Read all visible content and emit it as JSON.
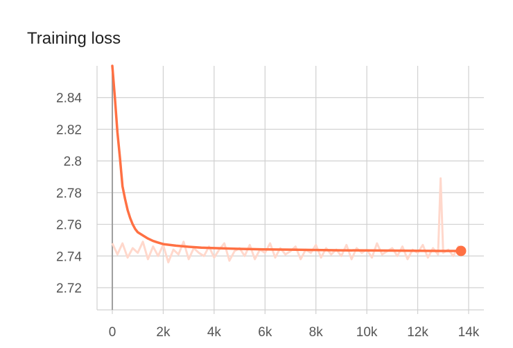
{
  "chart_data": {
    "type": "line",
    "title": "Training loss",
    "xlabel": "",
    "ylabel": "",
    "xlim": [
      -600,
      14600
    ],
    "ylim": [
      2.706,
      2.86
    ],
    "x_ticks": [
      0,
      2000,
      4000,
      6000,
      8000,
      10000,
      12000,
      14000
    ],
    "x_tick_labels": [
      "0",
      "2k",
      "4k",
      "6k",
      "8k",
      "10k",
      "12k",
      "14k"
    ],
    "y_ticks": [
      2.72,
      2.74,
      2.76,
      2.78,
      2.8,
      2.82,
      2.84
    ],
    "y_tick_labels": [
      "2.72",
      "2.74",
      "2.76",
      "2.78",
      "2.8",
      "2.82",
      "2.84"
    ],
    "grid": true,
    "legend": "none",
    "colors": {
      "smoothed": "#ff7043",
      "raw": "#ffd8cc",
      "grid": "#d0d0d0",
      "axis": "#9e9e9e"
    },
    "series": [
      {
        "role": "smoothed",
        "x": [
          0,
          100,
          200,
          300,
          400,
          500,
          600,
          700,
          800,
          900,
          1000,
          1200,
          1400,
          1600,
          1800,
          2000,
          2500,
          3000,
          3500,
          4000,
          5000,
          6000,
          7000,
          8000,
          9000,
          10000,
          11000,
          12000,
          13000,
          13700
        ],
        "y": [
          2.86,
          2.84,
          2.818,
          2.802,
          2.784,
          2.776,
          2.769,
          2.764,
          2.76,
          2.757,
          2.755,
          2.753,
          2.751,
          2.7495,
          2.7485,
          2.7475,
          2.7465,
          2.7458,
          2.7453,
          2.745,
          2.7445,
          2.7442,
          2.744,
          2.7438,
          2.7436,
          2.7435,
          2.7434,
          2.7433,
          2.7432,
          2.7432
        ]
      },
      {
        "role": "raw",
        "x": [
          0,
          200,
          400,
          600,
          800,
          1000,
          1200,
          1400,
          1600,
          1800,
          2000,
          2200,
          2400,
          2600,
          2800,
          3000,
          3200,
          3400,
          3600,
          3800,
          4000,
          4200,
          4400,
          4600,
          4800,
          5000,
          5200,
          5400,
          5600,
          5800,
          6000,
          6200,
          6400,
          6600,
          6800,
          7000,
          7200,
          7400,
          7600,
          7800,
          8000,
          8200,
          8400,
          8600,
          8800,
          9000,
          9200,
          9400,
          9600,
          9800,
          10000,
          10200,
          10400,
          10600,
          10800,
          11000,
          11200,
          11400,
          11600,
          11800,
          12000,
          12200,
          12400,
          12600,
          12800,
          12900,
          13000,
          13200,
          13400,
          13600,
          13700
        ],
        "y": [
          2.748,
          2.741,
          2.748,
          2.739,
          2.745,
          2.742,
          2.749,
          2.738,
          2.746,
          2.74,
          2.747,
          2.736,
          2.744,
          2.741,
          2.749,
          2.738,
          2.745,
          2.742,
          2.74,
          2.746,
          2.739,
          2.744,
          2.748,
          2.737,
          2.743,
          2.745,
          2.74,
          2.747,
          2.738,
          2.744,
          2.742,
          2.748,
          2.739,
          2.745,
          2.741,
          2.743,
          2.746,
          2.738,
          2.744,
          2.742,
          2.747,
          2.739,
          2.745,
          2.741,
          2.744,
          2.74,
          2.747,
          2.738,
          2.745,
          2.742,
          2.744,
          2.739,
          2.748,
          2.741,
          2.743,
          2.745,
          2.74,
          2.746,
          2.738,
          2.744,
          2.742,
          2.747,
          2.739,
          2.745,
          2.741,
          2.789,
          2.742,
          2.744,
          2.74,
          2.746,
          2.743
        ]
      }
    ]
  }
}
